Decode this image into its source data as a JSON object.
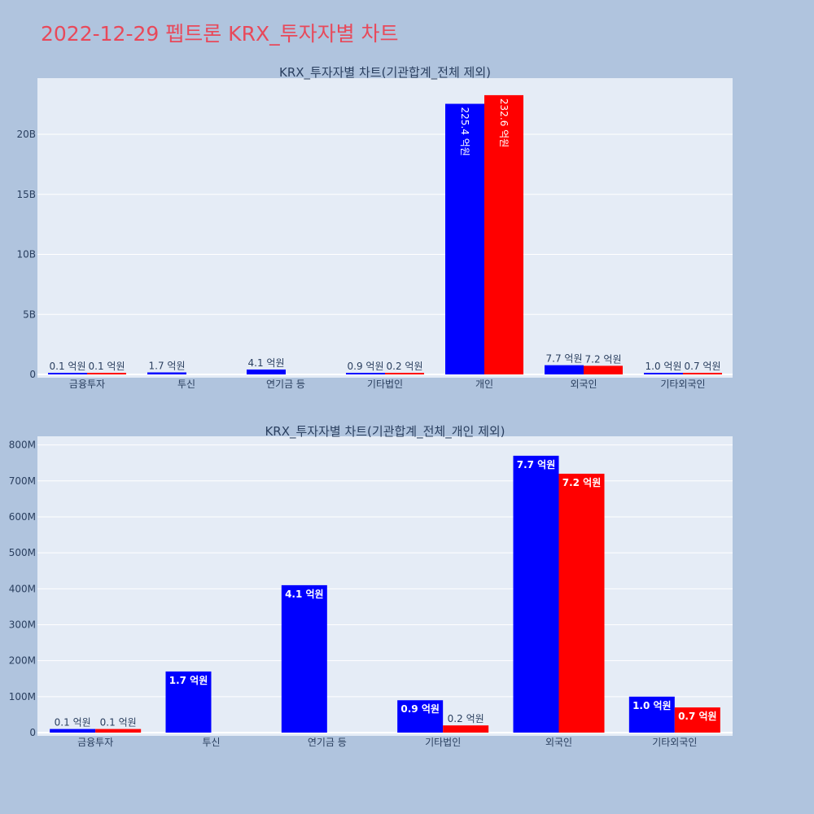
{
  "page_title": "2022-12-29 펩트론 KRX_투자자별 차트",
  "colors": {
    "background": "#b0c4de",
    "plot_bg": "#e5ecf6",
    "title": "#e8495a",
    "buy": "#0000ff",
    "sell": "#ff0000"
  },
  "chart_data": [
    {
      "type": "bar",
      "title": "KRX_투자자별 차트(기관합계_전체 제외)",
      "categories": [
        "금융투자",
        "투신",
        "연기금 등",
        "기타법인",
        "개인",
        "외국인",
        "기타외국인"
      ],
      "series": [
        {
          "color": "#0000ff",
          "values": [
            10000000,
            170000000,
            410000000,
            90000000,
            22540000000,
            770000000,
            100000000
          ],
          "labels": [
            "0.1 억원",
            "1.7 억원",
            "4.1 억원",
            "0.9 억원",
            "225.4 억원",
            "7.7 억원",
            "1.0 억원"
          ]
        },
        {
          "color": "#ff0000",
          "values": [
            10000000,
            0,
            0,
            20000000,
            23260000000,
            720000000,
            70000000
          ],
          "labels": [
            "0.1 억원",
            "",
            "",
            "0.2 억원",
            "232.6 억원",
            "7.2 억원",
            "0.7 억원"
          ]
        }
      ],
      "ylim": [
        0,
        24000000000
      ],
      "yticks": [
        0,
        5000000000,
        10000000000,
        15000000000,
        20000000000
      ],
      "ytick_labels": [
        "0",
        "5B",
        "10B",
        "15B",
        "20B"
      ],
      "xlabel": "",
      "ylabel": "",
      "grid": true
    },
    {
      "type": "bar",
      "title": "KRX_투자자별 차트(기관합계_전체_개인 제외)",
      "categories": [
        "금융투자",
        "투신",
        "연기금 등",
        "기타법인",
        "외국인",
        "기타외국인"
      ],
      "series": [
        {
          "color": "#0000ff",
          "values": [
            10000000,
            170000000,
            410000000,
            90000000,
            770000000,
            100000000
          ],
          "labels": [
            "0.1 억원",
            "1.7 억원",
            "4.1 억원",
            "0.9 억원",
            "7.7 억원",
            "1.0 억원"
          ]
        },
        {
          "color": "#ff0000",
          "values": [
            10000000,
            0,
            0,
            20000000,
            720000000,
            70000000
          ],
          "labels": [
            "0.1 억원",
            "",
            "",
            "0.2 억원",
            "7.2 억원",
            "0.7 억원"
          ]
        }
      ],
      "ylim": [
        0,
        815000000
      ],
      "yticks": [
        0,
        100000000,
        200000000,
        300000000,
        400000000,
        500000000,
        600000000,
        700000000,
        800000000
      ],
      "ytick_labels": [
        "0",
        "100M",
        "200M",
        "300M",
        "400M",
        "500M",
        "600M",
        "700M",
        "800M"
      ],
      "xlabel": "",
      "ylabel": "",
      "grid": true
    }
  ]
}
